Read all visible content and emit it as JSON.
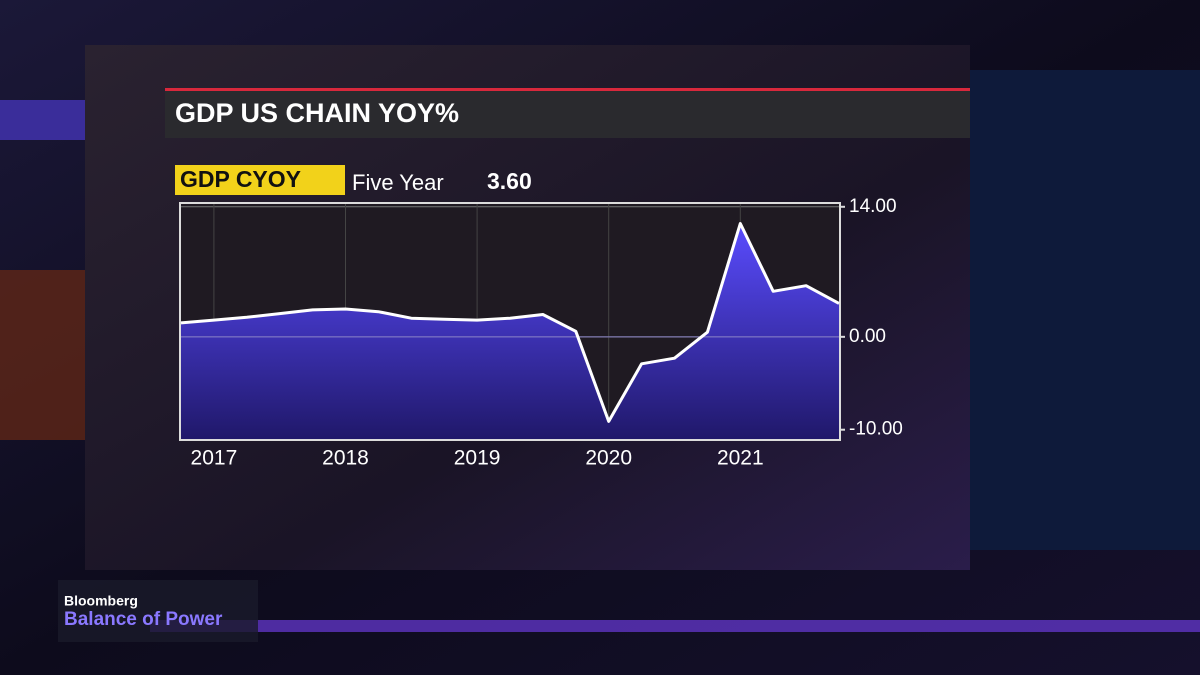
{
  "header": {
    "title": "GDP US CHAIN YOY%",
    "ticker": "GDP CYOY",
    "period": "Five Year",
    "last_value": "3.60"
  },
  "chart_data": {
    "type": "area",
    "categories": [
      null,
      "2017",
      null,
      null,
      null,
      "2018",
      null,
      null,
      null,
      "2019",
      null,
      null,
      null,
      "2020",
      null,
      null,
      null,
      "2021",
      null,
      null,
      null
    ],
    "values": [
      1.5,
      1.8,
      2.1,
      2.5,
      2.9,
      3.0,
      2.7,
      2.0,
      1.9,
      1.8,
      2.0,
      2.4,
      0.6,
      -9.1,
      -2.9,
      -2.3,
      0.5,
      12.2,
      4.9,
      5.5,
      3.6
    ],
    "color": "#4a3cf0",
    "line_color": "#ffffff",
    "ylim": [
      -11,
      14.3
    ],
    "yticks": [
      {
        "value": -10,
        "label": "-10.00"
      },
      {
        "value": 0,
        "label": "0.00"
      },
      {
        "value": 14,
        "label": "14.00"
      }
    ],
    "grid": true
  },
  "branding": {
    "network": "Bloomberg",
    "show": "Balance of Power"
  }
}
